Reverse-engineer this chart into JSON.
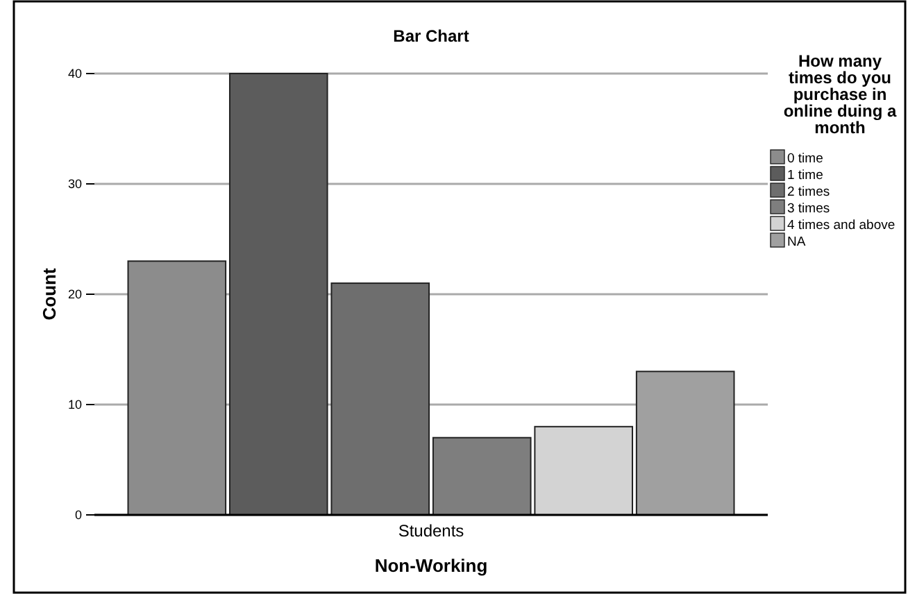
{
  "chart_data": {
    "type": "bar",
    "title": "Bar Chart",
    "xlabel": "Non-Working",
    "ylabel": "Count",
    "legend_title": "How many times do you purchase in online duing a month",
    "categories": [
      "Students"
    ],
    "series": [
      {
        "name": "0 time",
        "color": "#8c8c8c",
        "values": [
          23
        ]
      },
      {
        "name": "1 time",
        "color": "#5c5c5c",
        "values": [
          40
        ]
      },
      {
        "name": "2 times",
        "color": "#6e6e6e",
        "values": [
          21
        ]
      },
      {
        "name": "3 times",
        "color": "#7e7e7e",
        "values": [
          7
        ]
      },
      {
        "name": "4 times and above",
        "color": "#d3d3d3",
        "values": [
          8
        ]
      },
      {
        "name": "NA",
        "color": "#a0a0a0",
        "values": [
          13
        ]
      }
    ],
    "ylim": [
      0,
      40
    ],
    "yticks": [
      0,
      10,
      20,
      30,
      40
    ],
    "grid": "y",
    "legend": "right"
  }
}
